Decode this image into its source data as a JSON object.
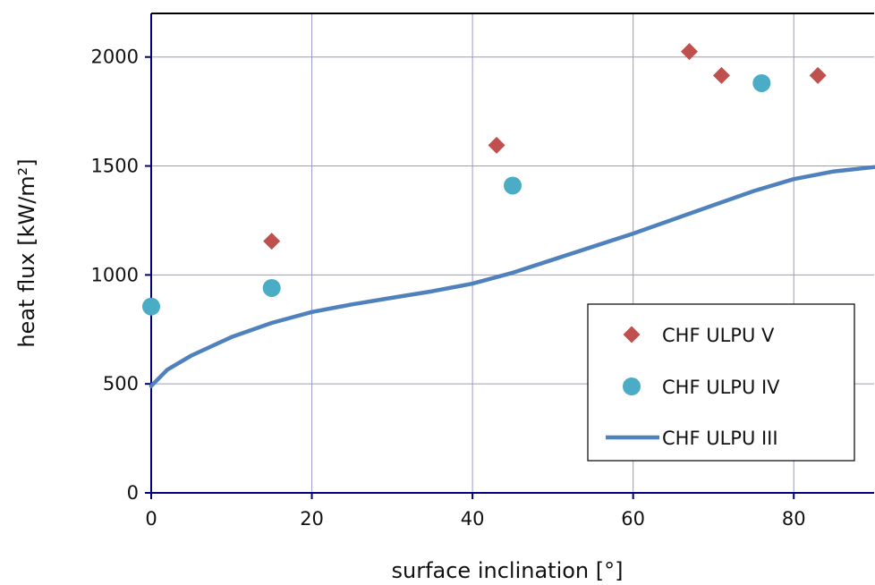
{
  "chart_data": {
    "type": "scatter",
    "xlabel": "surface inclination [°]",
    "ylabel": "heat flux [kW/m²]",
    "xlim": [
      0,
      90
    ],
    "ylim": [
      0,
      2200
    ],
    "xticks": [
      0,
      20,
      40,
      60,
      80
    ],
    "yticks": [
      0,
      500,
      1000,
      1500,
      2000
    ],
    "grid": true,
    "legend_position": "bottom-right",
    "series": [
      {
        "name": "CHF ULPU V",
        "kind": "scatter",
        "marker": "diamond",
        "color": "#c0504d",
        "x": [
          15,
          43,
          67,
          71,
          83
        ],
        "y": [
          1155,
          1595,
          2025,
          1915,
          1915
        ]
      },
      {
        "name": "CHF ULPU IV",
        "kind": "scatter",
        "marker": "circle",
        "color": "#4bacc6",
        "x": [
          0,
          15,
          45,
          76
        ],
        "y": [
          855,
          940,
          1410,
          1880
        ]
      },
      {
        "name": "CHF ULPU III",
        "kind": "line",
        "color": "#4f81bd",
        "x": [
          0,
          2,
          5,
          10,
          15,
          20,
          25,
          30,
          35,
          40,
          45,
          50,
          55,
          60,
          65,
          70,
          75,
          80,
          85,
          90
        ],
        "y": [
          490,
          565,
          630,
          715,
          780,
          830,
          865,
          895,
          925,
          960,
          1010,
          1070,
          1130,
          1190,
          1255,
          1320,
          1385,
          1440,
          1475,
          1495
        ]
      }
    ]
  }
}
